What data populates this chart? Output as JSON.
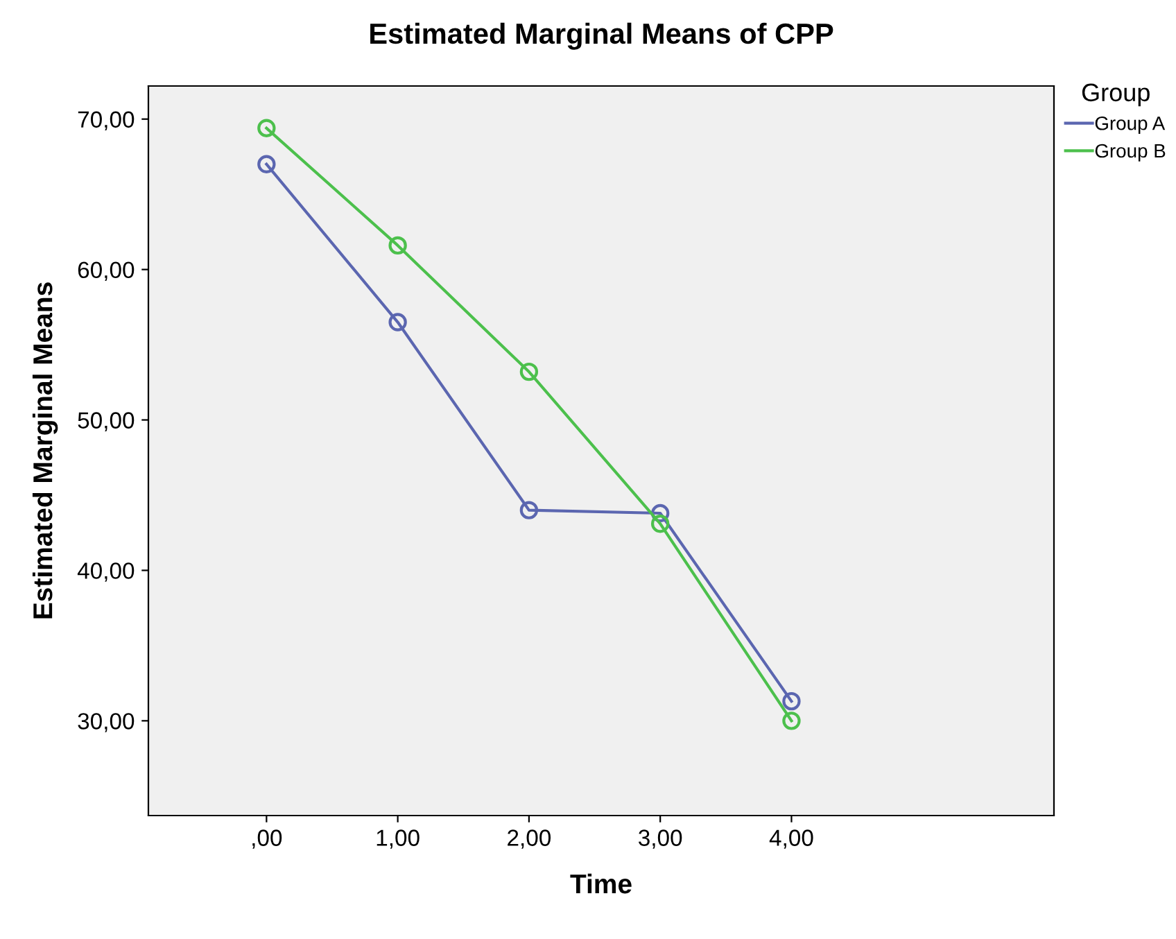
{
  "chart_data": {
    "type": "line",
    "title": "Estimated Marginal Means of CPP",
    "xlabel": "Time",
    "ylabel": "Estimated Marginal Means",
    "legend_title": "Group",
    "x": [
      0,
      1,
      2,
      3,
      4
    ],
    "series": [
      {
        "name": "Group A",
        "color": "#5b66b0",
        "values": [
          67.0,
          56.5,
          44.0,
          43.8,
          31.3
        ]
      },
      {
        "name": "Group B",
        "color": "#4cc04c",
        "values": [
          69.4,
          61.6,
          53.2,
          43.1,
          30.0
        ]
      }
    ],
    "xlim": [
      -0.9,
      6.0
    ],
    "xticks": [
      {
        "value": 0,
        "label": ",00"
      },
      {
        "value": 1,
        "label": "1,00"
      },
      {
        "value": 2,
        "label": "2,00"
      },
      {
        "value": 3,
        "label": "3,00"
      },
      {
        "value": 4,
        "label": "4,00"
      }
    ],
    "ylim": [
      23.7,
      72.2
    ],
    "yticks": [
      {
        "value": 30,
        "label": "30,00"
      },
      {
        "value": 40,
        "label": "40,00"
      },
      {
        "value": 50,
        "label": "50,00"
      },
      {
        "value": 60,
        "label": "60,00"
      },
      {
        "value": 70,
        "label": "70,00"
      }
    ],
    "grid": false,
    "legend": "top right",
    "marker": "circle",
    "line_style": "solid"
  }
}
